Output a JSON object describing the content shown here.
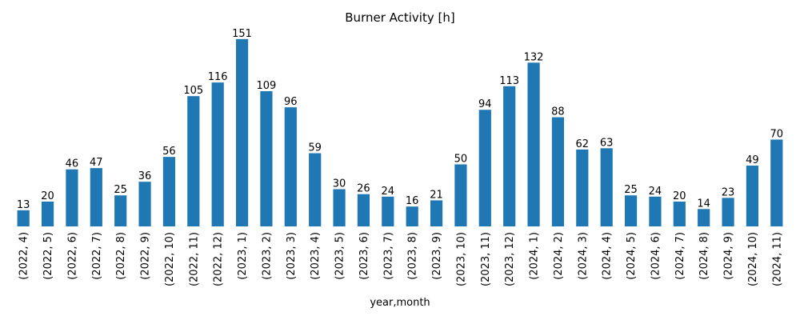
{
  "chart_data": {
    "type": "bar",
    "title": "Burner Activity [h]",
    "xlabel": "year,month",
    "ylabel": "",
    "ylim": [
      0,
      158
    ],
    "grid": false,
    "bar_color": "#1f77b4",
    "categories": [
      "(2022, 4)",
      "(2022, 5)",
      "(2022, 6)",
      "(2022, 7)",
      "(2022, 8)",
      "(2022, 9)",
      "(2022, 10)",
      "(2022, 11)",
      "(2022, 12)",
      "(2023, 1)",
      "(2023, 2)",
      "(2023, 3)",
      "(2023, 4)",
      "(2023, 5)",
      "(2023, 6)",
      "(2023, 7)",
      "(2023, 8)",
      "(2023, 9)",
      "(2023, 10)",
      "(2023, 11)",
      "(2023, 12)",
      "(2024, 1)",
      "(2024, 2)",
      "(2024, 3)",
      "(2024, 4)",
      "(2024, 5)",
      "(2024, 6)",
      "(2024, 7)",
      "(2024, 8)",
      "(2024, 9)",
      "(2024, 10)",
      "(2024, 11)"
    ],
    "values": [
      13,
      20,
      46,
      47,
      25,
      36,
      56,
      105,
      116,
      151,
      109,
      96,
      59,
      30,
      26,
      24,
      16,
      21,
      50,
      94,
      113,
      132,
      88,
      62,
      63,
      25,
      24,
      20,
      14,
      23,
      49,
      70
    ],
    "data_labels": [
      "13",
      "20",
      "46",
      "47",
      "25",
      "36",
      "56",
      "105",
      "116",
      "151",
      "109",
      "96",
      "59",
      "30",
      "26",
      "24",
      "16",
      "21",
      "50",
      "94",
      "113",
      "132",
      "88",
      "62",
      "63",
      "25",
      "24",
      "20",
      "14",
      "23",
      "49",
      "70"
    ]
  }
}
